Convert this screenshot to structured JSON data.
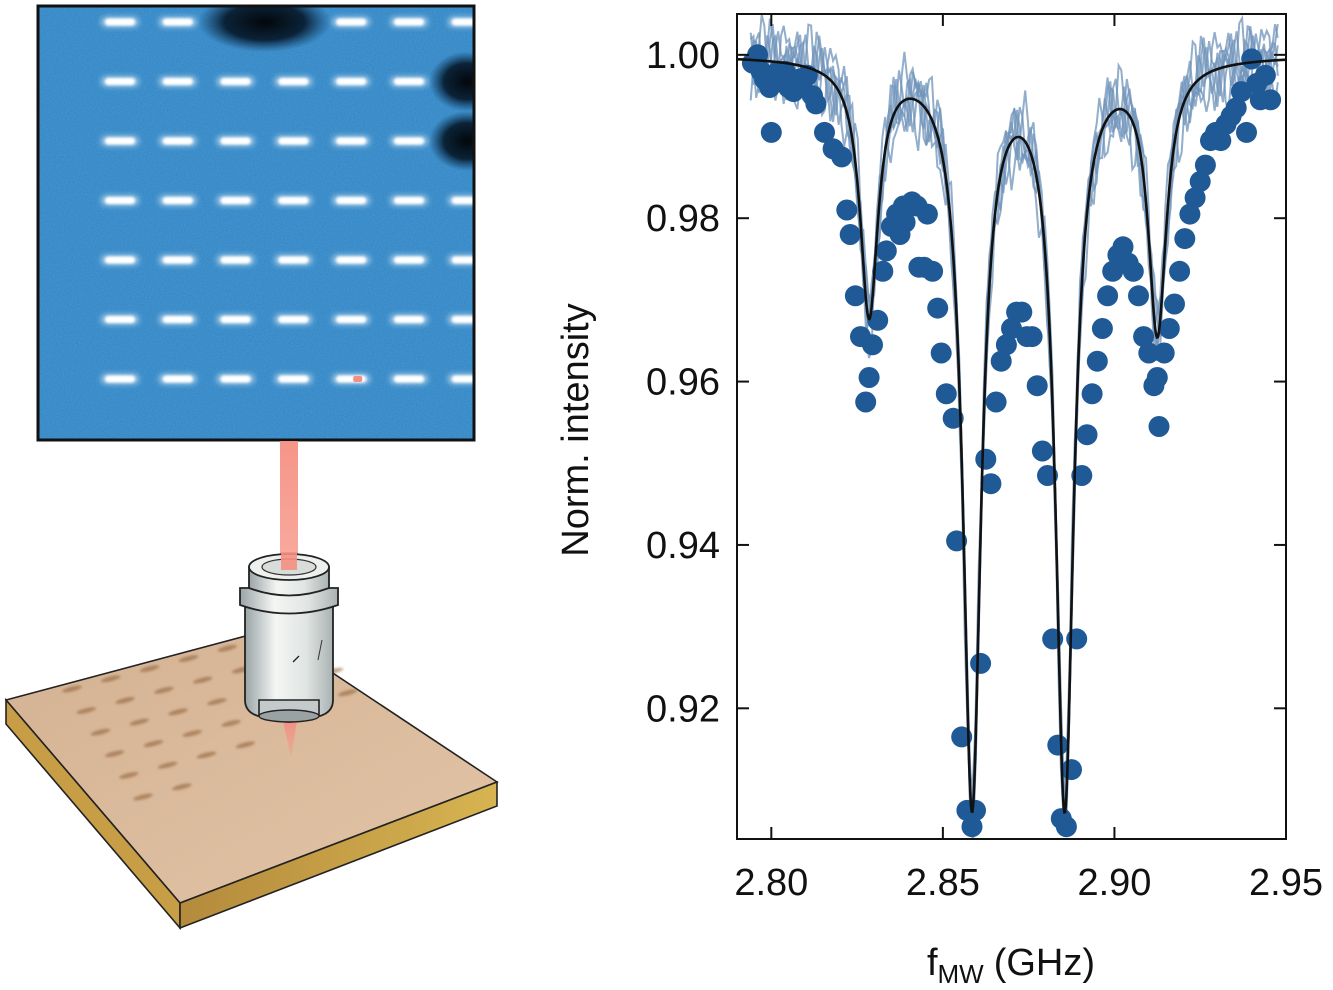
{
  "colors": {
    "marker": "#1f5a96",
    "trace": "#6f93ba",
    "fit": "#111111",
    "map_bg": "#2c82c2",
    "spot": "#ffffff",
    "laser": "#f58f82",
    "sample_top": "#d9b99a",
    "sample_side": "#c9a24a"
  },
  "icons": {
    "map": "fluorescence-map-image",
    "objective": "microscope-objective-icon",
    "sample": "sample-slab-icon"
  },
  "chart_data": {
    "type": "scatter",
    "title": "",
    "xlabel_main": "f",
    "xlabel_sub": "MW",
    "xlabel_unit": "(GHz)",
    "ylabel": "Norm. intensity",
    "xlim": [
      2.79,
      2.95
    ],
    "ylim": [
      0.904,
      1.005
    ],
    "xticks": [
      2.8,
      2.85,
      2.9,
      2.95
    ],
    "xtick_labels": [
      "2.80",
      "2.85",
      "2.90",
      "2.95"
    ],
    "yticks": [
      0.92,
      0.94,
      0.96,
      0.98,
      1.0
    ],
    "ytick_labels": [
      "0.92",
      "0.94",
      "0.96",
      "0.98",
      "1.00"
    ],
    "grid": false,
    "fit": {
      "type": "lorentzian-sum",
      "baseline": 1.0,
      "dips": [
        {
          "center": 2.8285,
          "depth": 0.031,
          "hwhm": 0.0032
        },
        {
          "center": 2.8585,
          "depth": 0.091,
          "hwhm": 0.0032
        },
        {
          "center": 2.8855,
          "depth": 0.091,
          "hwhm": 0.0032
        },
        {
          "center": 2.9125,
          "depth": 0.033,
          "hwhm": 0.0032
        }
      ]
    },
    "points": [
      {
        "x": 2.7945,
        "y": 0.999
      },
      {
        "x": 2.796,
        "y": 1.0
      },
      {
        "x": 2.797,
        "y": 0.998
      },
      {
        "x": 2.798,
        "y": 0.997
      },
      {
        "x": 2.7995,
        "y": 0.996
      },
      {
        "x": 2.8,
        "y": 0.9905
      },
      {
        "x": 2.802,
        "y": 0.998
      },
      {
        "x": 2.803,
        "y": 0.997
      },
      {
        "x": 2.804,
        "y": 0.998
      },
      {
        "x": 2.805,
        "y": 0.996
      },
      {
        "x": 2.806,
        "y": 0.997
      },
      {
        "x": 2.8065,
        "y": 0.9955
      },
      {
        "x": 2.808,
        "y": 0.997
      },
      {
        "x": 2.809,
        "y": 0.996
      },
      {
        "x": 2.8105,
        "y": 0.9975
      },
      {
        "x": 2.812,
        "y": 0.995
      },
      {
        "x": 2.813,
        "y": 0.994
      },
      {
        "x": 2.8155,
        "y": 0.9905
      },
      {
        "x": 2.818,
        "y": 0.9885
      },
      {
        "x": 2.8205,
        "y": 0.9875
      },
      {
        "x": 2.822,
        "y": 0.981
      },
      {
        "x": 2.823,
        "y": 0.978
      },
      {
        "x": 2.8245,
        "y": 0.9705
      },
      {
        "x": 2.826,
        "y": 0.9655
      },
      {
        "x": 2.8275,
        "y": 0.9575
      },
      {
        "x": 2.8285,
        "y": 0.9605
      },
      {
        "x": 2.8295,
        "y": 0.9645
      },
      {
        "x": 2.831,
        "y": 0.9675
      },
      {
        "x": 2.8325,
        "y": 0.9735
      },
      {
        "x": 2.8335,
        "y": 0.976
      },
      {
        "x": 2.835,
        "y": 0.979
      },
      {
        "x": 2.8365,
        "y": 0.9805
      },
      {
        "x": 2.8375,
        "y": 0.978
      },
      {
        "x": 2.8385,
        "y": 0.9815
      },
      {
        "x": 2.839,
        "y": 0.9795
      },
      {
        "x": 2.8405,
        "y": 0.9815
      },
      {
        "x": 2.841,
        "y": 0.982
      },
      {
        "x": 2.8425,
        "y": 0.9815
      },
      {
        "x": 2.843,
        "y": 0.974
      },
      {
        "x": 2.8445,
        "y": 0.974
      },
      {
        "x": 2.8455,
        "y": 0.9805
      },
      {
        "x": 2.847,
        "y": 0.9735
      },
      {
        "x": 2.8485,
        "y": 0.969
      },
      {
        "x": 2.8495,
        "y": 0.9635
      },
      {
        "x": 2.851,
        "y": 0.9585
      },
      {
        "x": 2.853,
        "y": 0.9555
      },
      {
        "x": 2.854,
        "y": 0.9405
      },
      {
        "x": 2.8555,
        "y": 0.9165
      },
      {
        "x": 2.857,
        "y": 0.9075
      },
      {
        "x": 2.8585,
        "y": 0.9055
      },
      {
        "x": 2.8595,
        "y": 0.9075
      },
      {
        "x": 2.861,
        "y": 0.9255
      },
      {
        "x": 2.8625,
        "y": 0.9505
      },
      {
        "x": 2.864,
        "y": 0.9475
      },
      {
        "x": 2.8655,
        "y": 0.9575
      },
      {
        "x": 2.867,
        "y": 0.9625
      },
      {
        "x": 2.8685,
        "y": 0.9645
      },
      {
        "x": 2.87,
        "y": 0.9665
      },
      {
        "x": 2.8715,
        "y": 0.9685
      },
      {
        "x": 2.873,
        "y": 0.9685
      },
      {
        "x": 2.8745,
        "y": 0.9655
      },
      {
        "x": 2.876,
        "y": 0.9655
      },
      {
        "x": 2.8775,
        "y": 0.9595
      },
      {
        "x": 2.879,
        "y": 0.9515
      },
      {
        "x": 2.8805,
        "y": 0.9485
      },
      {
        "x": 2.882,
        "y": 0.9285
      },
      {
        "x": 2.8835,
        "y": 0.9155
      },
      {
        "x": 2.8845,
        "y": 0.9065
      },
      {
        "x": 2.886,
        "y": 0.9055
      },
      {
        "x": 2.8875,
        "y": 0.9125
      },
      {
        "x": 2.889,
        "y": 0.9285
      },
      {
        "x": 2.8905,
        "y": 0.9485
      },
      {
        "x": 2.892,
        "y": 0.9535
      },
      {
        "x": 2.8935,
        "y": 0.9585
      },
      {
        "x": 2.895,
        "y": 0.9625
      },
      {
        "x": 2.8965,
        "y": 0.9665
      },
      {
        "x": 2.898,
        "y": 0.9705
      },
      {
        "x": 2.8995,
        "y": 0.9735
      },
      {
        "x": 2.901,
        "y": 0.9755
      },
      {
        "x": 2.9025,
        "y": 0.9765
      },
      {
        "x": 2.904,
        "y": 0.9745
      },
      {
        "x": 2.9055,
        "y": 0.9735
      },
      {
        "x": 2.907,
        "y": 0.9705
      },
      {
        "x": 2.9085,
        "y": 0.9655
      },
      {
        "x": 2.91,
        "y": 0.9635
      },
      {
        "x": 2.9115,
        "y": 0.9595
      },
      {
        "x": 2.9125,
        "y": 0.9605
      },
      {
        "x": 2.913,
        "y": 0.9545
      },
      {
        "x": 2.9145,
        "y": 0.9635
      },
      {
        "x": 2.916,
        "y": 0.9665
      },
      {
        "x": 2.9175,
        "y": 0.9695
      },
      {
        "x": 2.919,
        "y": 0.9735
      },
      {
        "x": 2.9205,
        "y": 0.9775
      },
      {
        "x": 2.922,
        "y": 0.9805
      },
      {
        "x": 2.9235,
        "y": 0.9825
      },
      {
        "x": 2.925,
        "y": 0.9845
      },
      {
        "x": 2.9265,
        "y": 0.9865
      },
      {
        "x": 2.928,
        "y": 0.9895
      },
      {
        "x": 2.9295,
        "y": 0.9905
      },
      {
        "x": 2.931,
        "y": 0.9895
      },
      {
        "x": 2.9325,
        "y": 0.9915
      },
      {
        "x": 2.934,
        "y": 0.9925
      },
      {
        "x": 2.9355,
        "y": 0.9935
      },
      {
        "x": 2.937,
        "y": 0.9955
      },
      {
        "x": 2.9385,
        "y": 0.9905
      },
      {
        "x": 2.94,
        "y": 0.9995
      },
      {
        "x": 2.9415,
        "y": 0.9965
      },
      {
        "x": 2.9425,
        "y": 0.9945
      },
      {
        "x": 2.944,
        "y": 0.9975
      },
      {
        "x": 2.9455,
        "y": 0.9945
      }
    ],
    "traces": [
      {
        "offset": 0.002,
        "phase": 0.0
      },
      {
        "offset": 0.0035,
        "phase": 1.3
      },
      {
        "offset": 0.0015,
        "phase": 2.1
      },
      {
        "offset": 0.0045,
        "phase": 3.7
      },
      {
        "offset": 0.0025,
        "phase": 5.2
      },
      {
        "offset": 0.003,
        "phase": 0.7
      }
    ]
  },
  "map": {
    "rows": 7,
    "cols": 7,
    "missing_spots": [
      [
        0,
        2
      ],
      [
        0,
        3
      ],
      [
        1,
        6
      ],
      [
        2,
        6
      ]
    ],
    "highlight_spot": [
      6,
      4
    ],
    "dark_blobs": [
      {
        "row": 0,
        "col_start": 2,
        "col_end": 3
      },
      {
        "row": 1,
        "col_start": 6,
        "col_end": 6
      },
      {
        "row": 2,
        "col_start": 6,
        "col_end": 6
      }
    ]
  }
}
